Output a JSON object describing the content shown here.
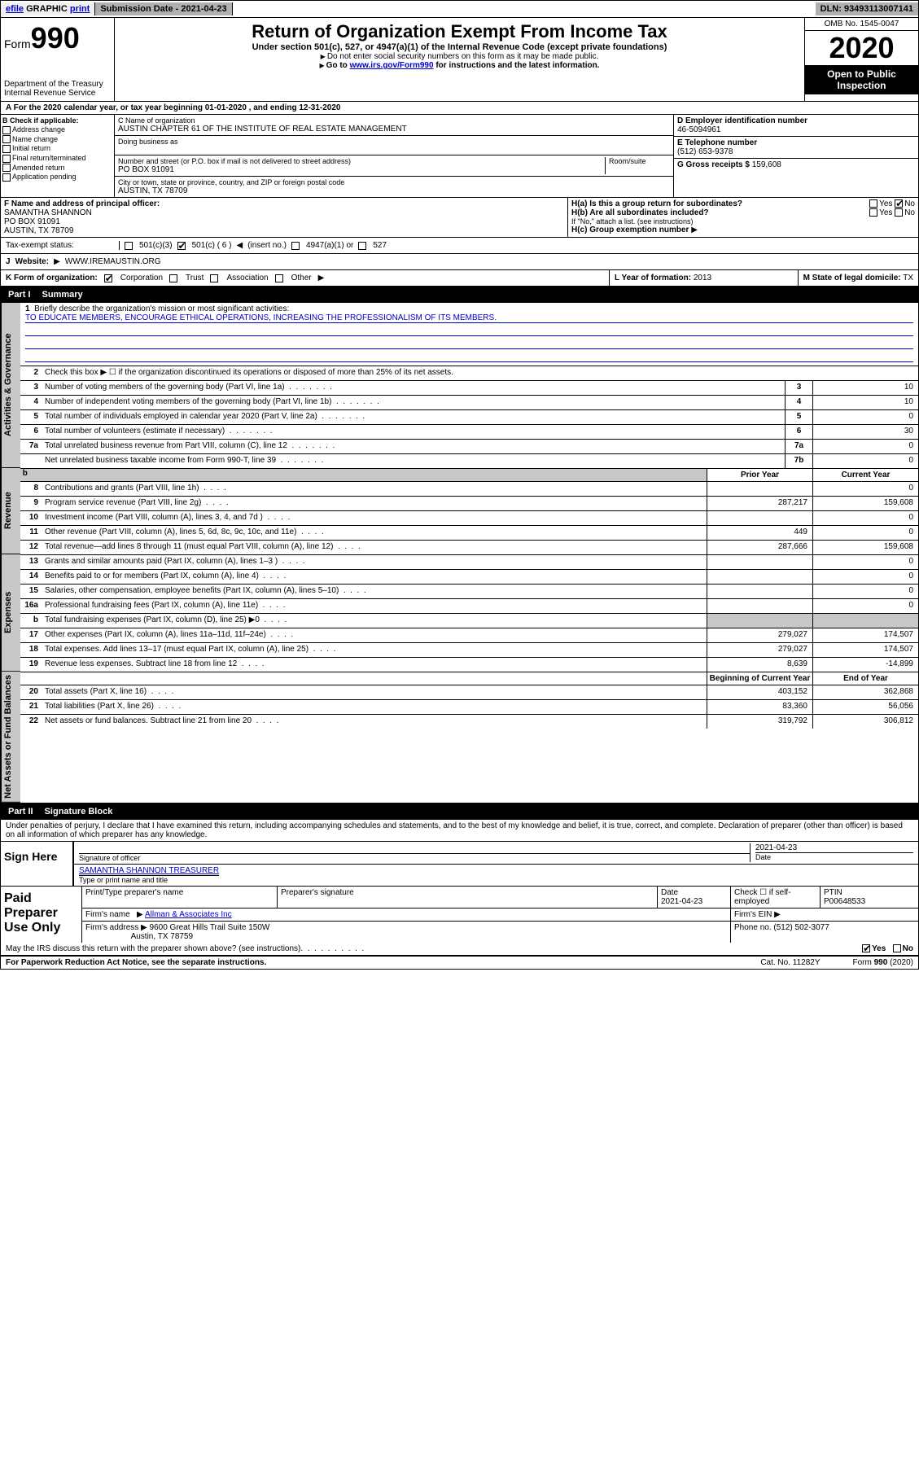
{
  "colors": {
    "text": "#000000",
    "bg": "#ffffff",
    "link": "#0000cc",
    "shade_light": "#c8c8c8",
    "shade_med": "#b0b0b0",
    "black": "#000000"
  },
  "topbar": {
    "efile": "efile",
    "graphic": "GRAPHIC",
    "print": "print",
    "submission": "Submission Date - 2021-04-23",
    "dln": "DLN: 93493113007141"
  },
  "header": {
    "form_word": "Form",
    "form_num": "990",
    "dept": "Department of the Treasury\nInternal Revenue Service",
    "title": "Return of Organization Exempt From Income Tax",
    "subtitle": "Under section 501(c), 527, or 4947(a)(1) of the Internal Revenue Code (except private foundations)",
    "instr1": "Do not enter social security numbers on this form as it may be made public.",
    "instr2_pre": "Go to ",
    "instr2_link": "www.irs.gov/Form990",
    "instr2_post": " for instructions and the latest information.",
    "omb": "OMB No. 1545-0047",
    "year": "2020",
    "open": "Open to Public Inspection"
  },
  "period": {
    "text_a": "A For the 2020 calendar year, or tax year beginning ",
    "begin": "01-01-2020",
    "text_b": " , and ending ",
    "end": "12-31-2020"
  },
  "boxB": {
    "label": "B Check if applicable:",
    "items": [
      "Address change",
      "Name change",
      "Initial return",
      "Final return/terminated",
      "Amended return",
      "Application pending"
    ]
  },
  "boxC": {
    "name_label": "C Name of organization",
    "name": "AUSTIN CHAPTER 61 OF THE INSTITUTE OF REAL ESTATE MANAGEMENT",
    "dba_label": "Doing business as",
    "dba": "",
    "addr_label": "Number and street (or P.O. box if mail is not delivered to street address)",
    "room_label": "Room/suite",
    "addr": "PO BOX 91091",
    "city_label": "City or town, state or province, country, and ZIP or foreign postal code",
    "city": "AUSTIN, TX  78709"
  },
  "boxD": {
    "label": "D Employer identification number",
    "value": "46-5094961"
  },
  "boxE": {
    "label": "E Telephone number",
    "value": "(512) 653-9378"
  },
  "boxG": {
    "label": "G Gross receipts $",
    "value": "159,608"
  },
  "boxF": {
    "label": "F Name and address of principal officer:",
    "name": "SAMANTHA SHANNON",
    "addr1": "PO BOX 91091",
    "addr2": "AUSTIN, TX  78709"
  },
  "boxH": {
    "ha": "H(a)  Is this a group return for subordinates?",
    "hb": "H(b)  Are all subordinates included?",
    "hb_note": "If \"No,\" attach a list. (see instructions)",
    "hc": "H(c)  Group exemption number",
    "yes": "Yes",
    "no": "No"
  },
  "status": {
    "label": "Tax-exempt status:",
    "opt1": "501(c)(3)",
    "opt2": "501(c) ( 6 )",
    "insert": "(insert no.)",
    "opt3": "4947(a)(1) or",
    "opt4": "527"
  },
  "website": {
    "label": "Website:",
    "value": "WWW.IREMAUSTIN.ORG"
  },
  "korg": {
    "label": "K Form of organization:",
    "corp": "Corporation",
    "trust": "Trust",
    "assoc": "Association",
    "other": "Other"
  },
  "boxL": {
    "label": "L Year of formation:",
    "value": "2013"
  },
  "boxM": {
    "label": "M State of legal domicile:",
    "value": "TX"
  },
  "partI": {
    "label": "Part I",
    "title": "Summary"
  },
  "summary": {
    "l1_label": "Briefly describe the organization's mission or most significant activities:",
    "l1_mission": "TO EDUCATE MEMBERS, ENCOURAGE ETHICAL OPERATIONS, INCREASING THE PROFESSIONALISM OF ITS MEMBERS.",
    "l2": "Check this box ▶ ☐ if the organization discontinued its operations or disposed of more than 25% of its net assets.",
    "rows_gov": [
      {
        "n": "3",
        "d": "Number of voting members of the governing body (Part VI, line 1a)",
        "b": "3",
        "v": "10"
      },
      {
        "n": "4",
        "d": "Number of independent voting members of the governing body (Part VI, line 1b)",
        "b": "4",
        "v": "10"
      },
      {
        "n": "5",
        "d": "Total number of individuals employed in calendar year 2020 (Part V, line 2a)",
        "b": "5",
        "v": "0"
      },
      {
        "n": "6",
        "d": "Total number of volunteers (estimate if necessary)",
        "b": "6",
        "v": "30"
      },
      {
        "n": "7a",
        "d": "Total unrelated business revenue from Part VIII, column (C), line 12",
        "b": "7a",
        "v": "0"
      },
      {
        "n": "",
        "d": "Net unrelated business taxable income from Form 990-T, line 39",
        "b": "7b",
        "v": "0"
      }
    ],
    "col_prior": "Prior Year",
    "col_current": "Current Year",
    "rows_rev": [
      {
        "n": "8",
        "d": "Contributions and grants (Part VIII, line 1h)",
        "p": "",
        "c": "0"
      },
      {
        "n": "9",
        "d": "Program service revenue (Part VIII, line 2g)",
        "p": "287,217",
        "c": "159,608"
      },
      {
        "n": "10",
        "d": "Investment income (Part VIII, column (A), lines 3, 4, and 7d )",
        "p": "",
        "c": "0"
      },
      {
        "n": "11",
        "d": "Other revenue (Part VIII, column (A), lines 5, 6d, 8c, 9c, 10c, and 11e)",
        "p": "449",
        "c": "0"
      },
      {
        "n": "12",
        "d": "Total revenue—add lines 8 through 11 (must equal Part VIII, column (A), line 12)",
        "p": "287,666",
        "c": "159,608"
      }
    ],
    "rows_exp": [
      {
        "n": "13",
        "d": "Grants and similar amounts paid (Part IX, column (A), lines 1–3 )",
        "p": "",
        "c": "0"
      },
      {
        "n": "14",
        "d": "Benefits paid to or for members (Part IX, column (A), line 4)",
        "p": "",
        "c": "0"
      },
      {
        "n": "15",
        "d": "Salaries, other compensation, employee benefits (Part IX, column (A), lines 5–10)",
        "p": "",
        "c": "0"
      },
      {
        "n": "16a",
        "d": "Professional fundraising fees (Part IX, column (A), line 11e)",
        "p": "",
        "c": "0"
      },
      {
        "n": "b",
        "d": "Total fundraising expenses (Part IX, column (D), line 25) ▶0",
        "p": "shade",
        "c": "shade"
      },
      {
        "n": "17",
        "d": "Other expenses (Part IX, column (A), lines 11a–11d, 11f–24e)",
        "p": "279,027",
        "c": "174,507"
      },
      {
        "n": "18",
        "d": "Total expenses. Add lines 13–17 (must equal Part IX, column (A), line 25)",
        "p": "279,027",
        "c": "174,507"
      },
      {
        "n": "19",
        "d": "Revenue less expenses. Subtract line 18 from line 12",
        "p": "8,639",
        "c": "-14,899"
      }
    ],
    "col_begin": "Beginning of Current Year",
    "col_end": "End of Year",
    "rows_na": [
      {
        "n": "20",
        "d": "Total assets (Part X, line 16)",
        "p": "403,152",
        "c": "362,868"
      },
      {
        "n": "21",
        "d": "Total liabilities (Part X, line 26)",
        "p": "83,360",
        "c": "56,056"
      },
      {
        "n": "22",
        "d": "Net assets or fund balances. Subtract line 21 from line 20",
        "p": "319,792",
        "c": "306,812"
      }
    ],
    "vtab_gov": "Activities & Governance",
    "vtab_rev": "Revenue",
    "vtab_exp": "Expenses",
    "vtab_na": "Net Assets or Fund Balances"
  },
  "partII": {
    "label": "Part II",
    "title": "Signature Block"
  },
  "perjury": "Under penalties of perjury, I declare that I have examined this return, including accompanying schedules and statements, and to the best of my knowledge and belief, it is true, correct, and complete. Declaration of preparer (other than officer) is based on all information of which preparer has any knowledge.",
  "sign": {
    "here": "Sign Here",
    "sig_officer": "Signature of officer",
    "date": "Date",
    "date_val": "2021-04-23",
    "name": "SAMANTHA SHANNON  TREASURER",
    "type_label": "Type or print name and title"
  },
  "paid": {
    "label": "Paid Preparer Use Only",
    "h_name": "Print/Type preparer's name",
    "h_sig": "Preparer's signature",
    "h_date": "Date",
    "h_date_val": "2021-04-23",
    "h_check": "Check ☐ if self-employed",
    "h_ptin": "PTIN",
    "ptin": "P00648533",
    "firm_name_l": "Firm's name",
    "firm_name": "Allman & Associates Inc",
    "firm_ein_l": "Firm's EIN",
    "firm_addr_l": "Firm's address",
    "firm_addr": "9600 Great Hills Trail Suite 150W",
    "firm_city": "Austin, TX  78759",
    "phone_l": "Phone no.",
    "phone": "(512) 502-3077"
  },
  "discuss": {
    "q": "May the IRS discuss this return with the preparer shown above? (see instructions)",
    "yes": "Yes",
    "no": "No"
  },
  "footer": {
    "pra": "For Paperwork Reduction Act Notice, see the separate instructions.",
    "cat": "Cat. No. 11282Y",
    "form": "Form 990 (2020)"
  }
}
